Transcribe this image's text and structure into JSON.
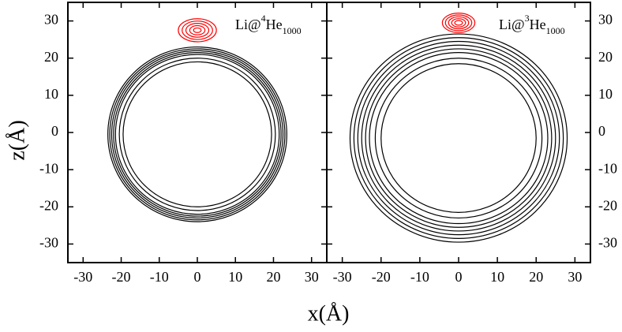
{
  "axis_labels": {
    "x": "x(Å)",
    "y": "z(Å)"
  },
  "chart_data": [
    {
      "type": "contour",
      "xlim": [
        -34,
        34
      ],
      "ylim": [
        -35,
        35
      ],
      "xticks": [
        -30,
        -20,
        -10,
        0,
        10,
        20,
        30
      ],
      "yticks": [
        -30,
        -20,
        -10,
        0,
        10,
        20,
        30
      ],
      "annotation": {
        "base": "Li@",
        "superscript": "4",
        "element": "He",
        "subscript": "1000"
      },
      "series": [
        {
          "color": "#000000",
          "center": [
            0,
            -0.5
          ],
          "values": [
            19.5,
            20.5,
            21.5,
            22,
            22.5,
            23,
            23.5
          ]
        },
        {
          "color": "#ff0000",
          "center": [
            0,
            27.5
          ],
          "values": [
            1,
            2,
            3,
            4,
            5
          ]
        }
      ]
    },
    {
      "type": "contour",
      "xlim": [
        -34,
        34
      ],
      "ylim": [
        -35,
        35
      ],
      "xticks": [
        -30,
        -20,
        -10,
        0,
        10,
        20,
        30
      ],
      "yticks": [
        -30,
        -20,
        -10,
        0,
        10,
        20,
        30
      ],
      "annotation": {
        "base": "Li@",
        "superscript": "3",
        "element": "He",
        "subscript": "1000"
      },
      "series": [
        {
          "color": "#000000",
          "center": [
            0,
            -1.5
          ],
          "values": [
            20,
            21.5,
            23,
            24,
            25,
            26,
            27,
            28
          ]
        },
        {
          "color": "#ff0000",
          "center": [
            0,
            29.5
          ],
          "values": [
            1,
            1.8,
            2.6,
            3.4,
            4.2
          ]
        }
      ]
    }
  ]
}
